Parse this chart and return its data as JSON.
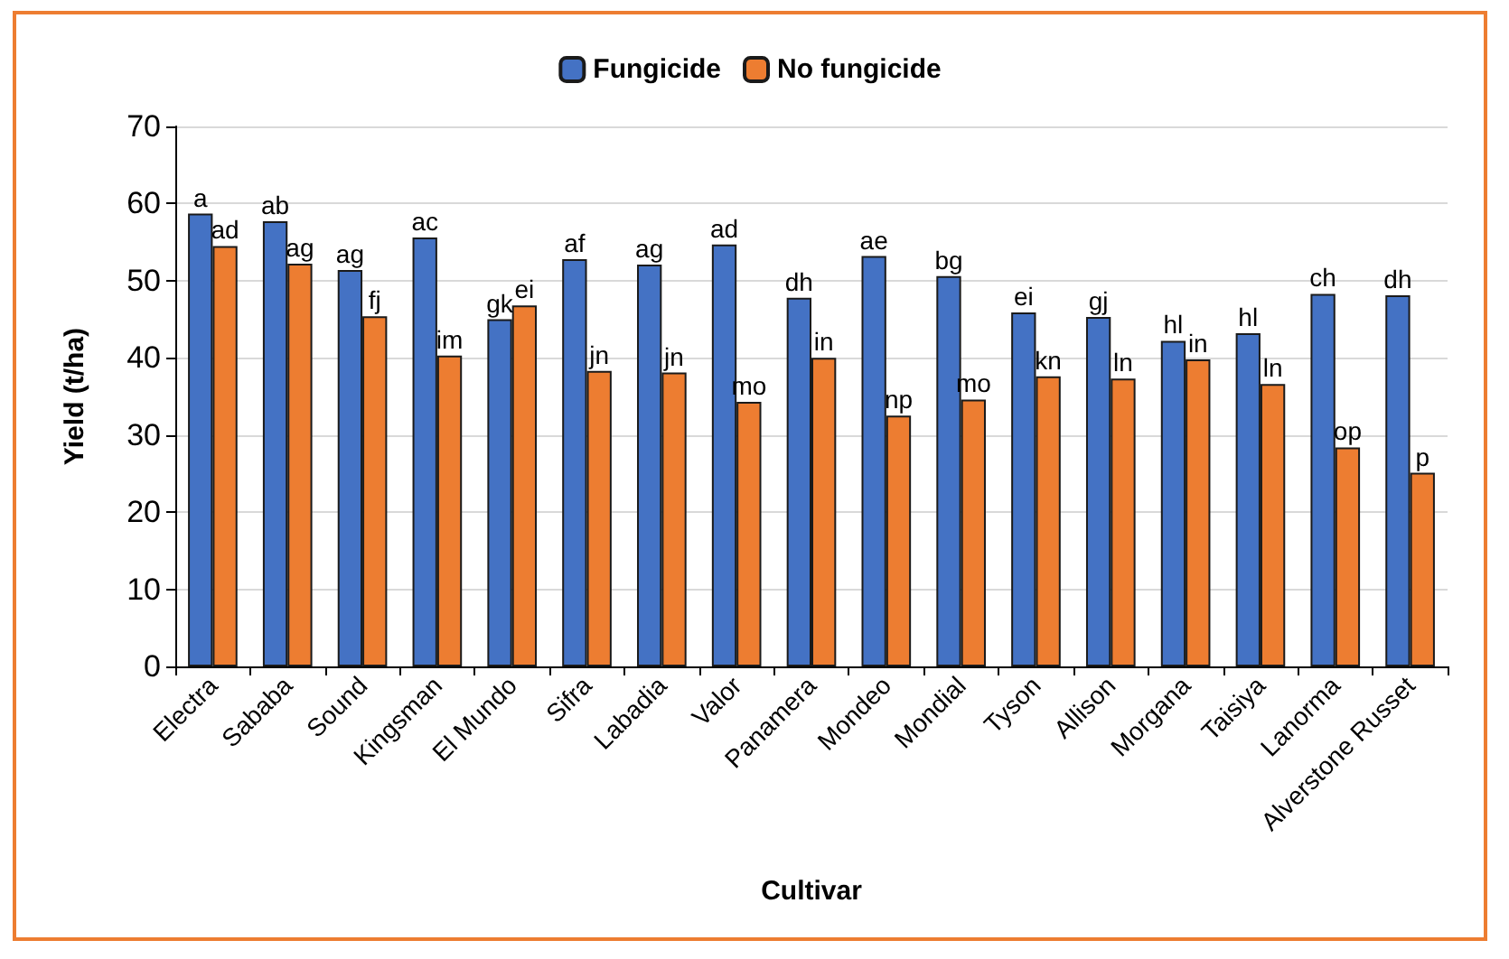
{
  "chart_data": {
    "type": "bar",
    "xlabel": "Cultivar",
    "ylabel": "Yield (t/ha)",
    "categories": [
      "Electra",
      "Sababa",
      "Sound",
      "Kingsman",
      "El Mundo",
      "Sifra",
      "Labadia",
      "Valor",
      "Panamera",
      "Mondeo",
      "Mondial",
      "Tyson",
      "Allison",
      "Morgana",
      "Taisiya",
      "Lanorma",
      "Alverstone Russet"
    ],
    "series": [
      {
        "name": "Fungicide",
        "color": "#4472c4",
        "values": [
          58.7,
          57.7,
          51.4,
          55.6,
          45.0,
          52.8,
          52.1,
          54.7,
          47.8,
          53.2,
          50.6,
          45.9,
          45.3,
          42.2,
          43.2,
          48.3,
          48.1
        ],
        "value_labels": [
          "a",
          "ab",
          "ag",
          "ac",
          "gk",
          "af",
          "ag",
          "ad",
          "dh",
          "ae",
          "bg",
          "ei",
          "gj",
          "hl",
          "hl",
          "ch",
          "dh"
        ]
      },
      {
        "name": "No fungicide",
        "color": "#ed7d31",
        "values": [
          54.5,
          52.2,
          45.4,
          40.3,
          46.8,
          38.3,
          38.1,
          34.3,
          40.0,
          32.5,
          34.6,
          37.6,
          37.3,
          39.8,
          36.6,
          28.4,
          25.1
        ],
        "value_labels": [
          "ad",
          "ag",
          "fj",
          "im",
          "ei",
          "jn",
          "jn",
          "mo",
          "in",
          "np",
          "mo",
          "kn",
          "ln",
          "in",
          "ln",
          "op",
          "p"
        ]
      }
    ],
    "ylim": [
      0,
      70
    ],
    "yticks": [
      0,
      10,
      20,
      30,
      40,
      50,
      60,
      70
    ],
    "grid": "y",
    "legend": "top"
  }
}
